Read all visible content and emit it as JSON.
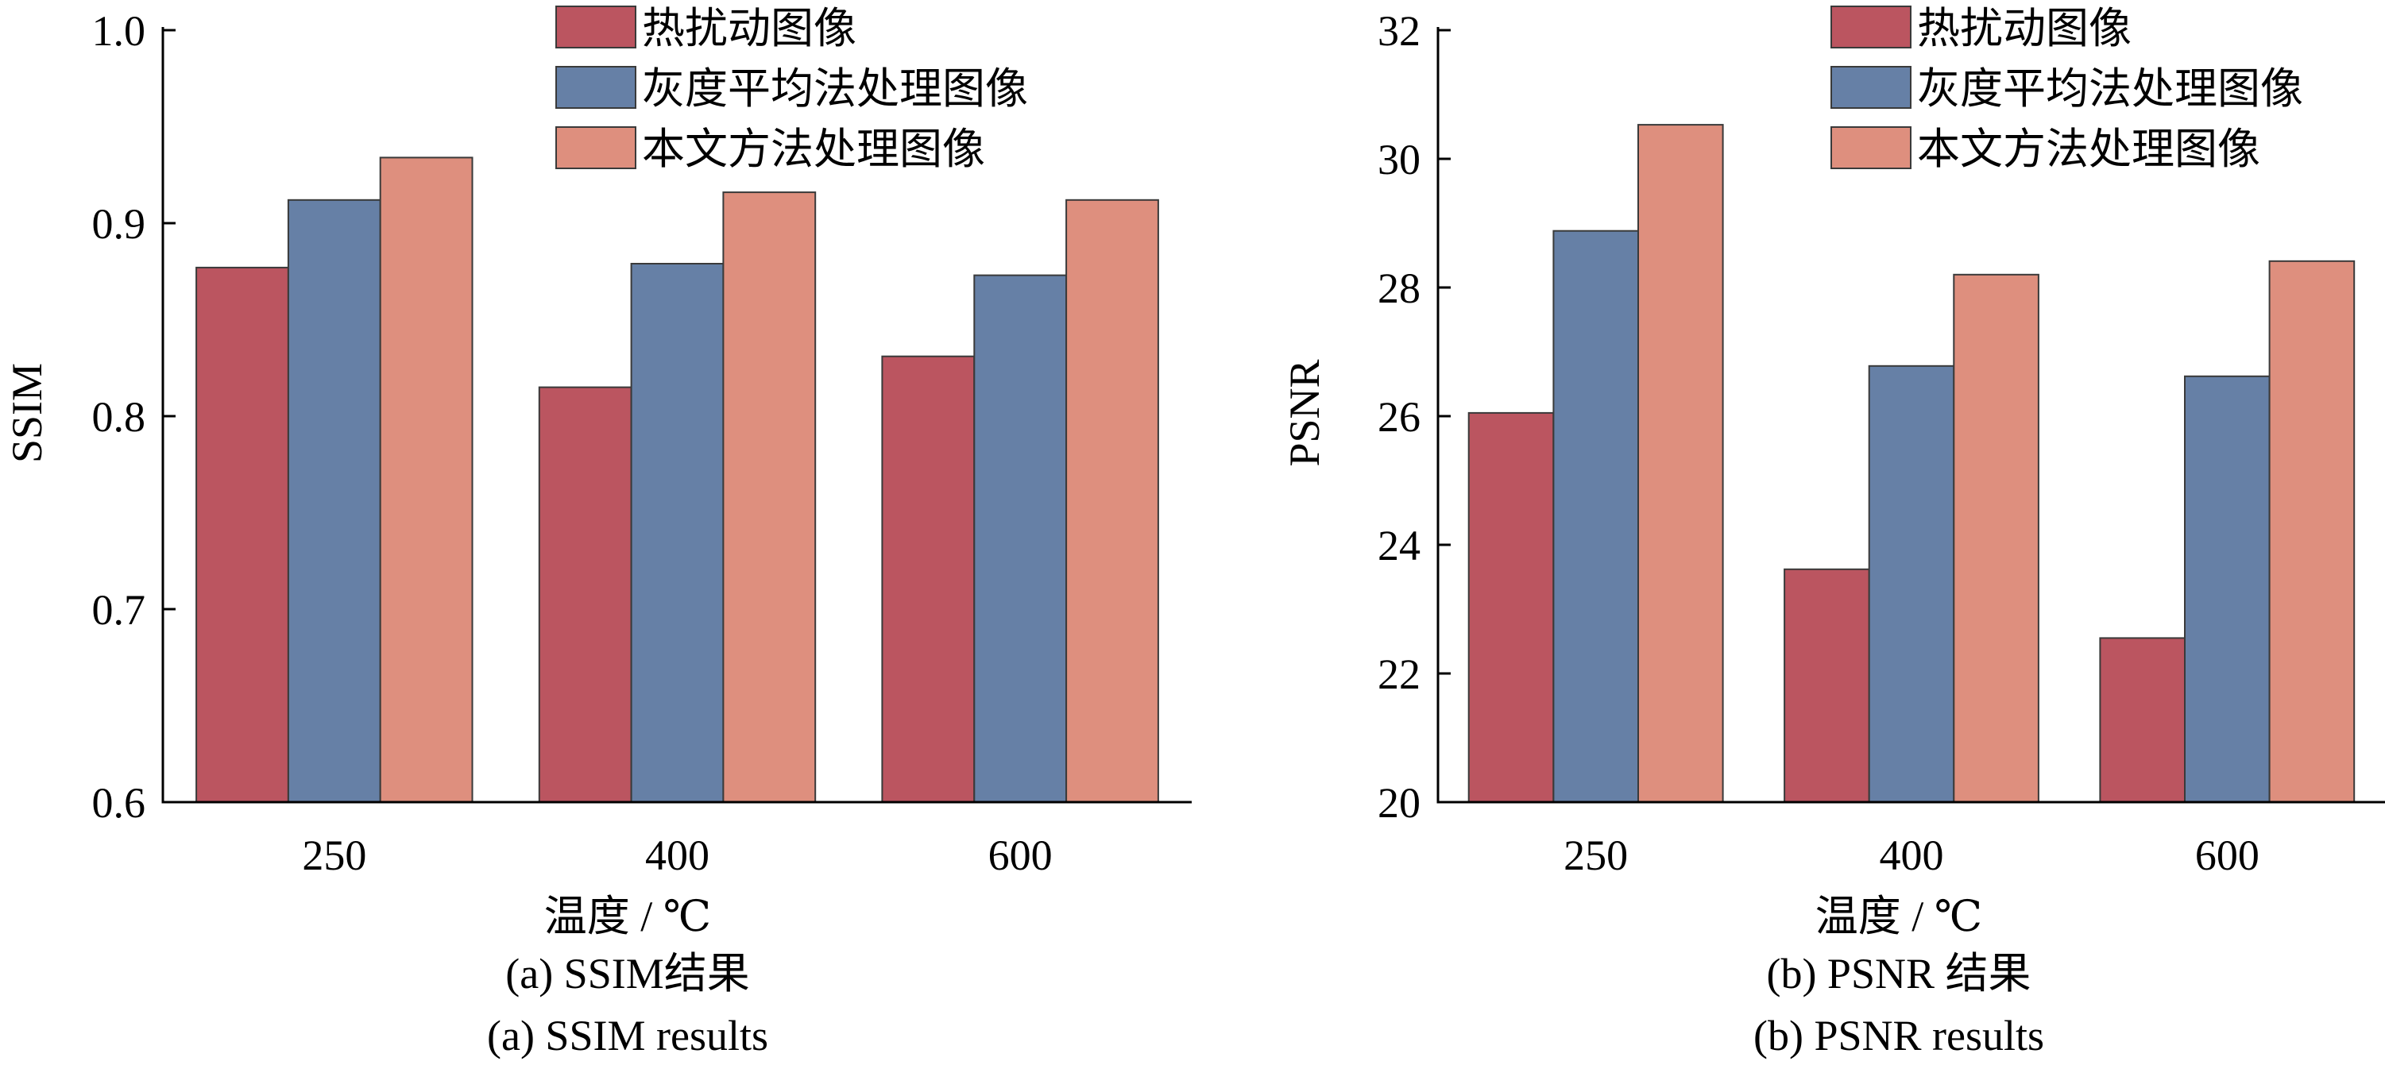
{
  "chart_data": [
    {
      "type": "bar",
      "ylabel": "SSIM",
      "xlabel": "温度 / ℃",
      "caption_cn": "(a) SSIM结果",
      "caption_en": "(a) SSIM results",
      "categories": [
        "250",
        "400",
        "600"
      ],
      "ylim": [
        0.6,
        1.0
      ],
      "yticks": [
        0.6,
        0.7,
        0.8,
        0.9,
        1.0
      ],
      "ytick_labels": [
        "0.6",
        "0.7",
        "0.8",
        "0.9",
        "1.0"
      ],
      "legend_position": "top-right",
      "grid": false,
      "series": [
        {
          "name": "热扰动图像",
          "color": "#bb5560",
          "values": [
            0.877,
            0.815,
            0.831
          ]
        },
        {
          "name": "灰度平均法处理图像",
          "color": "#6680a6",
          "values": [
            0.912,
            0.879,
            0.873
          ]
        },
        {
          "name": "本文方法处理图像",
          "color": "#de8f7e",
          "values": [
            0.934,
            0.916,
            0.912
          ]
        }
      ]
    },
    {
      "type": "bar",
      "ylabel": "PSNR",
      "xlabel": "温度 / ℃",
      "caption_cn": "(b) PSNR 结果",
      "caption_en": "(b) PSNR results",
      "categories": [
        "250",
        "400",
        "600"
      ],
      "ylim": [
        20,
        32
      ],
      "yticks": [
        20,
        22,
        24,
        26,
        28,
        30,
        32
      ],
      "ytick_labels": [
        "20",
        "22",
        "24",
        "26",
        "28",
        "30",
        "32"
      ],
      "legend_position": "top-right",
      "grid": false,
      "series": [
        {
          "name": "热扰动图像",
          "color": "#bb5560",
          "values": [
            26.05,
            23.62,
            22.55
          ]
        },
        {
          "name": "灰度平均法处理图像",
          "color": "#6680a6",
          "values": [
            28.88,
            26.78,
            26.62
          ]
        },
        {
          "name": "本文方法处理图像",
          "color": "#de8f7e",
          "values": [
            30.53,
            28.2,
            28.41
          ]
        }
      ]
    }
  ]
}
